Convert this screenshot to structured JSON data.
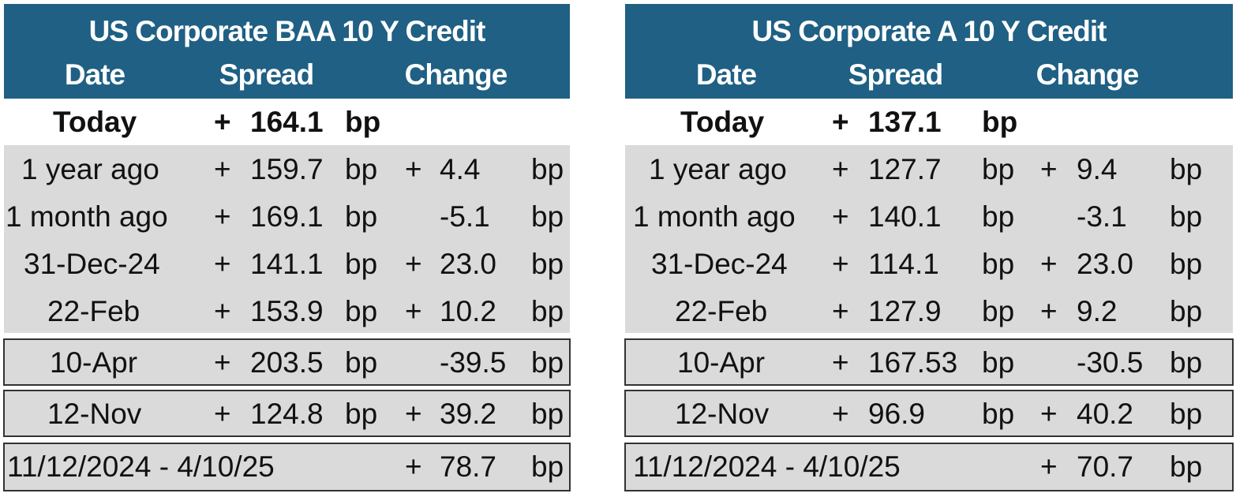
{
  "tables": [
    {
      "title": "US Corporate BAA 10 Y  Credit",
      "columns": {
        "date": "Date",
        "spread": "Spread",
        "change": "Change"
      },
      "today": {
        "label": "Today",
        "sign": "+",
        "value": "164.1",
        "unit": "bp"
      },
      "rows": [
        {
          "date": "1 year ago",
          "sign": "+",
          "spread": "159.7",
          "unit": "bp",
          "chg_sign": "+",
          "change": "4.4",
          "chg_unit": "bp"
        },
        {
          "date": "1 month ago",
          "sign": "+",
          "spread": "169.1",
          "unit": "bp",
          "chg_sign": "",
          "change": "-5.1",
          "chg_unit": "bp"
        },
        {
          "date": "31-Dec-24",
          "sign": "+",
          "spread": "141.1",
          "unit": "bp",
          "chg_sign": "+",
          "change": "23.0",
          "chg_unit": "bp"
        },
        {
          "date": "22-Feb",
          "sign": "+",
          "spread": "153.9",
          "unit": "bp",
          "chg_sign": "+",
          "change": "10.2",
          "chg_unit": "bp"
        }
      ],
      "apr": {
        "date": "10-Apr",
        "sign": "+",
        "spread": "203.5",
        "unit": "bp",
        "chg_sign": "",
        "change": "-39.5",
        "chg_unit": "bp"
      },
      "nov": {
        "date": "12-Nov",
        "sign": "+",
        "spread": "124.8",
        "unit": "bp",
        "chg_sign": "+",
        "change": "39.2",
        "chg_unit": "bp"
      },
      "range": {
        "label": "11/12/2024 - 4/10/25",
        "chg_sign": "+",
        "change": "78.7",
        "chg_unit": "bp"
      }
    },
    {
      "title": "US Corporate A 10 Y Credit",
      "columns": {
        "date": "Date",
        "spread": "Spread",
        "change": "Change"
      },
      "today": {
        "label": "Today",
        "sign": "+",
        "value": "137.1",
        "unit": "bp"
      },
      "rows": [
        {
          "date": "1 year ago",
          "sign": "+",
          "spread": "127.7",
          "unit": "bp",
          "chg_sign": "+",
          "change": "9.4",
          "chg_unit": "bp"
        },
        {
          "date": "1 month ago",
          "sign": "+",
          "spread": "140.1",
          "unit": "bp",
          "chg_sign": "",
          "change": "-3.1",
          "chg_unit": "bp"
        },
        {
          "date": "31-Dec-24",
          "sign": "+",
          "spread": "114.1",
          "unit": "bp",
          "chg_sign": "+",
          "change": "23.0",
          "chg_unit": "bp"
        },
        {
          "date": "22-Feb",
          "sign": "+",
          "spread": "127.9",
          "unit": "bp",
          "chg_sign": "+",
          "change": "9.2",
          "chg_unit": "bp"
        }
      ],
      "apr": {
        "date": "10-Apr",
        "sign": "+",
        "spread": "167.53",
        "unit": "bp",
        "chg_sign": "",
        "change": "-30.5",
        "chg_unit": "bp"
      },
      "nov": {
        "date": "12-Nov",
        "sign": "+",
        "spread": "96.9",
        "unit": "bp",
        "chg_sign": "+",
        "change": "40.2",
        "chg_unit": "bp"
      },
      "range": {
        "label": "11/12/2024 - 4/10/25",
        "chg_sign": "+",
        "change": "70.7",
        "chg_unit": "bp"
      }
    }
  ]
}
